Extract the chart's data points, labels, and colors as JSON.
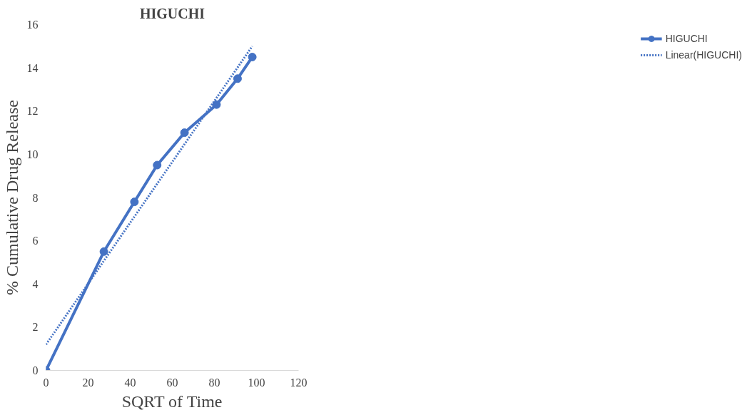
{
  "chart_data": {
    "type": "line",
    "title": "HIGUCHI",
    "xlabel": "SQRT of Time",
    "ylabel": "% Cumulative Drug Release",
    "xlim": [
      0,
      120
    ],
    "xticks": [
      0,
      20,
      40,
      60,
      80,
      100,
      120
    ],
    "ylim": [
      0,
      16
    ],
    "yticks": [
      0,
      2,
      4,
      6,
      8,
      10,
      12,
      14,
      16
    ],
    "grid": false,
    "legend": "right",
    "marker": "circle",
    "series": [
      {
        "name": "HIGUCHI",
        "color": "#4472c4",
        "x": [
          0,
          27.5,
          42,
          52.8,
          65.8,
          81,
          91,
          98
        ],
        "values": [
          0,
          5.5,
          7.8,
          9.5,
          11.0,
          12.3,
          13.5,
          14.5
        ]
      },
      {
        "name": "Linear(HIGUCHI)",
        "color": "#4472c4",
        "type": "line",
        "marker": "none",
        "line_style": "dotted",
        "x": [
          0,
          98
        ],
        "values": [
          1.2,
          15.0
        ]
      }
    ]
  }
}
